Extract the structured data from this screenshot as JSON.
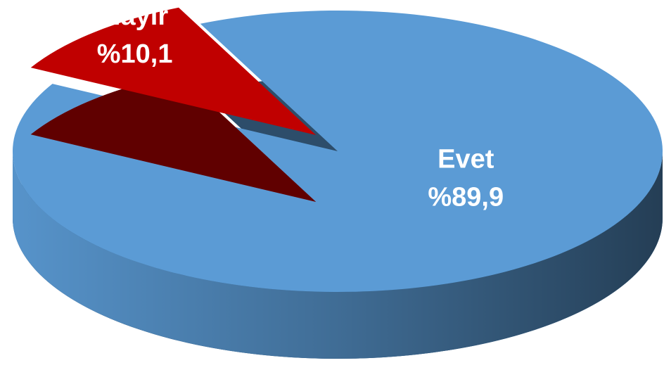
{
  "chart_data": {
    "type": "pie",
    "categories": [
      "Evet",
      "Hayır"
    ],
    "values": [
      89.9,
      10.1
    ],
    "value_labels": [
      "%89,9",
      "%10,1"
    ],
    "colors": [
      "#5b9bd5",
      "#c00000"
    ]
  }
}
